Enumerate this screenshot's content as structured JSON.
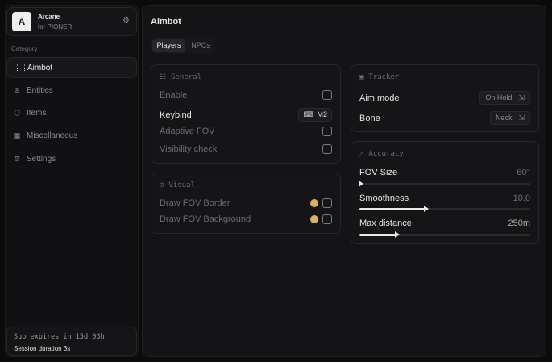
{
  "brand": {
    "logo": "A",
    "name": "Arcane",
    "subtitle": "for PIONER"
  },
  "sidebar": {
    "category_label": "Category",
    "items": [
      {
        "label": "Aimbot",
        "icon": "crosshair-icon",
        "glyph": "⋮⋮",
        "active": true
      },
      {
        "label": "Entities",
        "icon": "entities-icon",
        "glyph": "⊛"
      },
      {
        "label": "Items",
        "icon": "box-icon",
        "glyph": "⬡"
      },
      {
        "label": "Miscellaneous",
        "icon": "misc-icon",
        "glyph": "▦"
      },
      {
        "label": "Settings",
        "icon": "gear-icon",
        "glyph": "⚙"
      }
    ]
  },
  "footer": {
    "expires": "Sub expires in 15d 03h",
    "session": "Session duration 3s"
  },
  "main": {
    "title": "Aimbot",
    "tabs": [
      {
        "label": "Players",
        "active": true
      },
      {
        "label": "NPCs"
      }
    ]
  },
  "general": {
    "title": "General",
    "enable": "Enable",
    "keybind": "Keybind",
    "keybind_value": "M2",
    "adaptive_fov": "Adaptive FOV",
    "visibility_check": "Visibility check"
  },
  "visual": {
    "title": "Visual",
    "fov_border": "Draw FOV Border",
    "fov_background": "Draw FOV Background",
    "swatch_color": "#d9b25a"
  },
  "tracker": {
    "title": "Tracker",
    "aim_mode": "Aim mode",
    "aim_mode_value": "On Hold",
    "bone": "Bone",
    "bone_value": "Neck"
  },
  "accuracy": {
    "title": "Accuracy",
    "fov": {
      "label": "FOV Size",
      "value": "60°",
      "fraction": 0
    },
    "smoothness": {
      "label": "Smoothness",
      "value": "10.0",
      "fraction": 0.38
    },
    "max_distance": {
      "label": "Max distance",
      "value": "250m",
      "fraction": 0.21
    }
  }
}
